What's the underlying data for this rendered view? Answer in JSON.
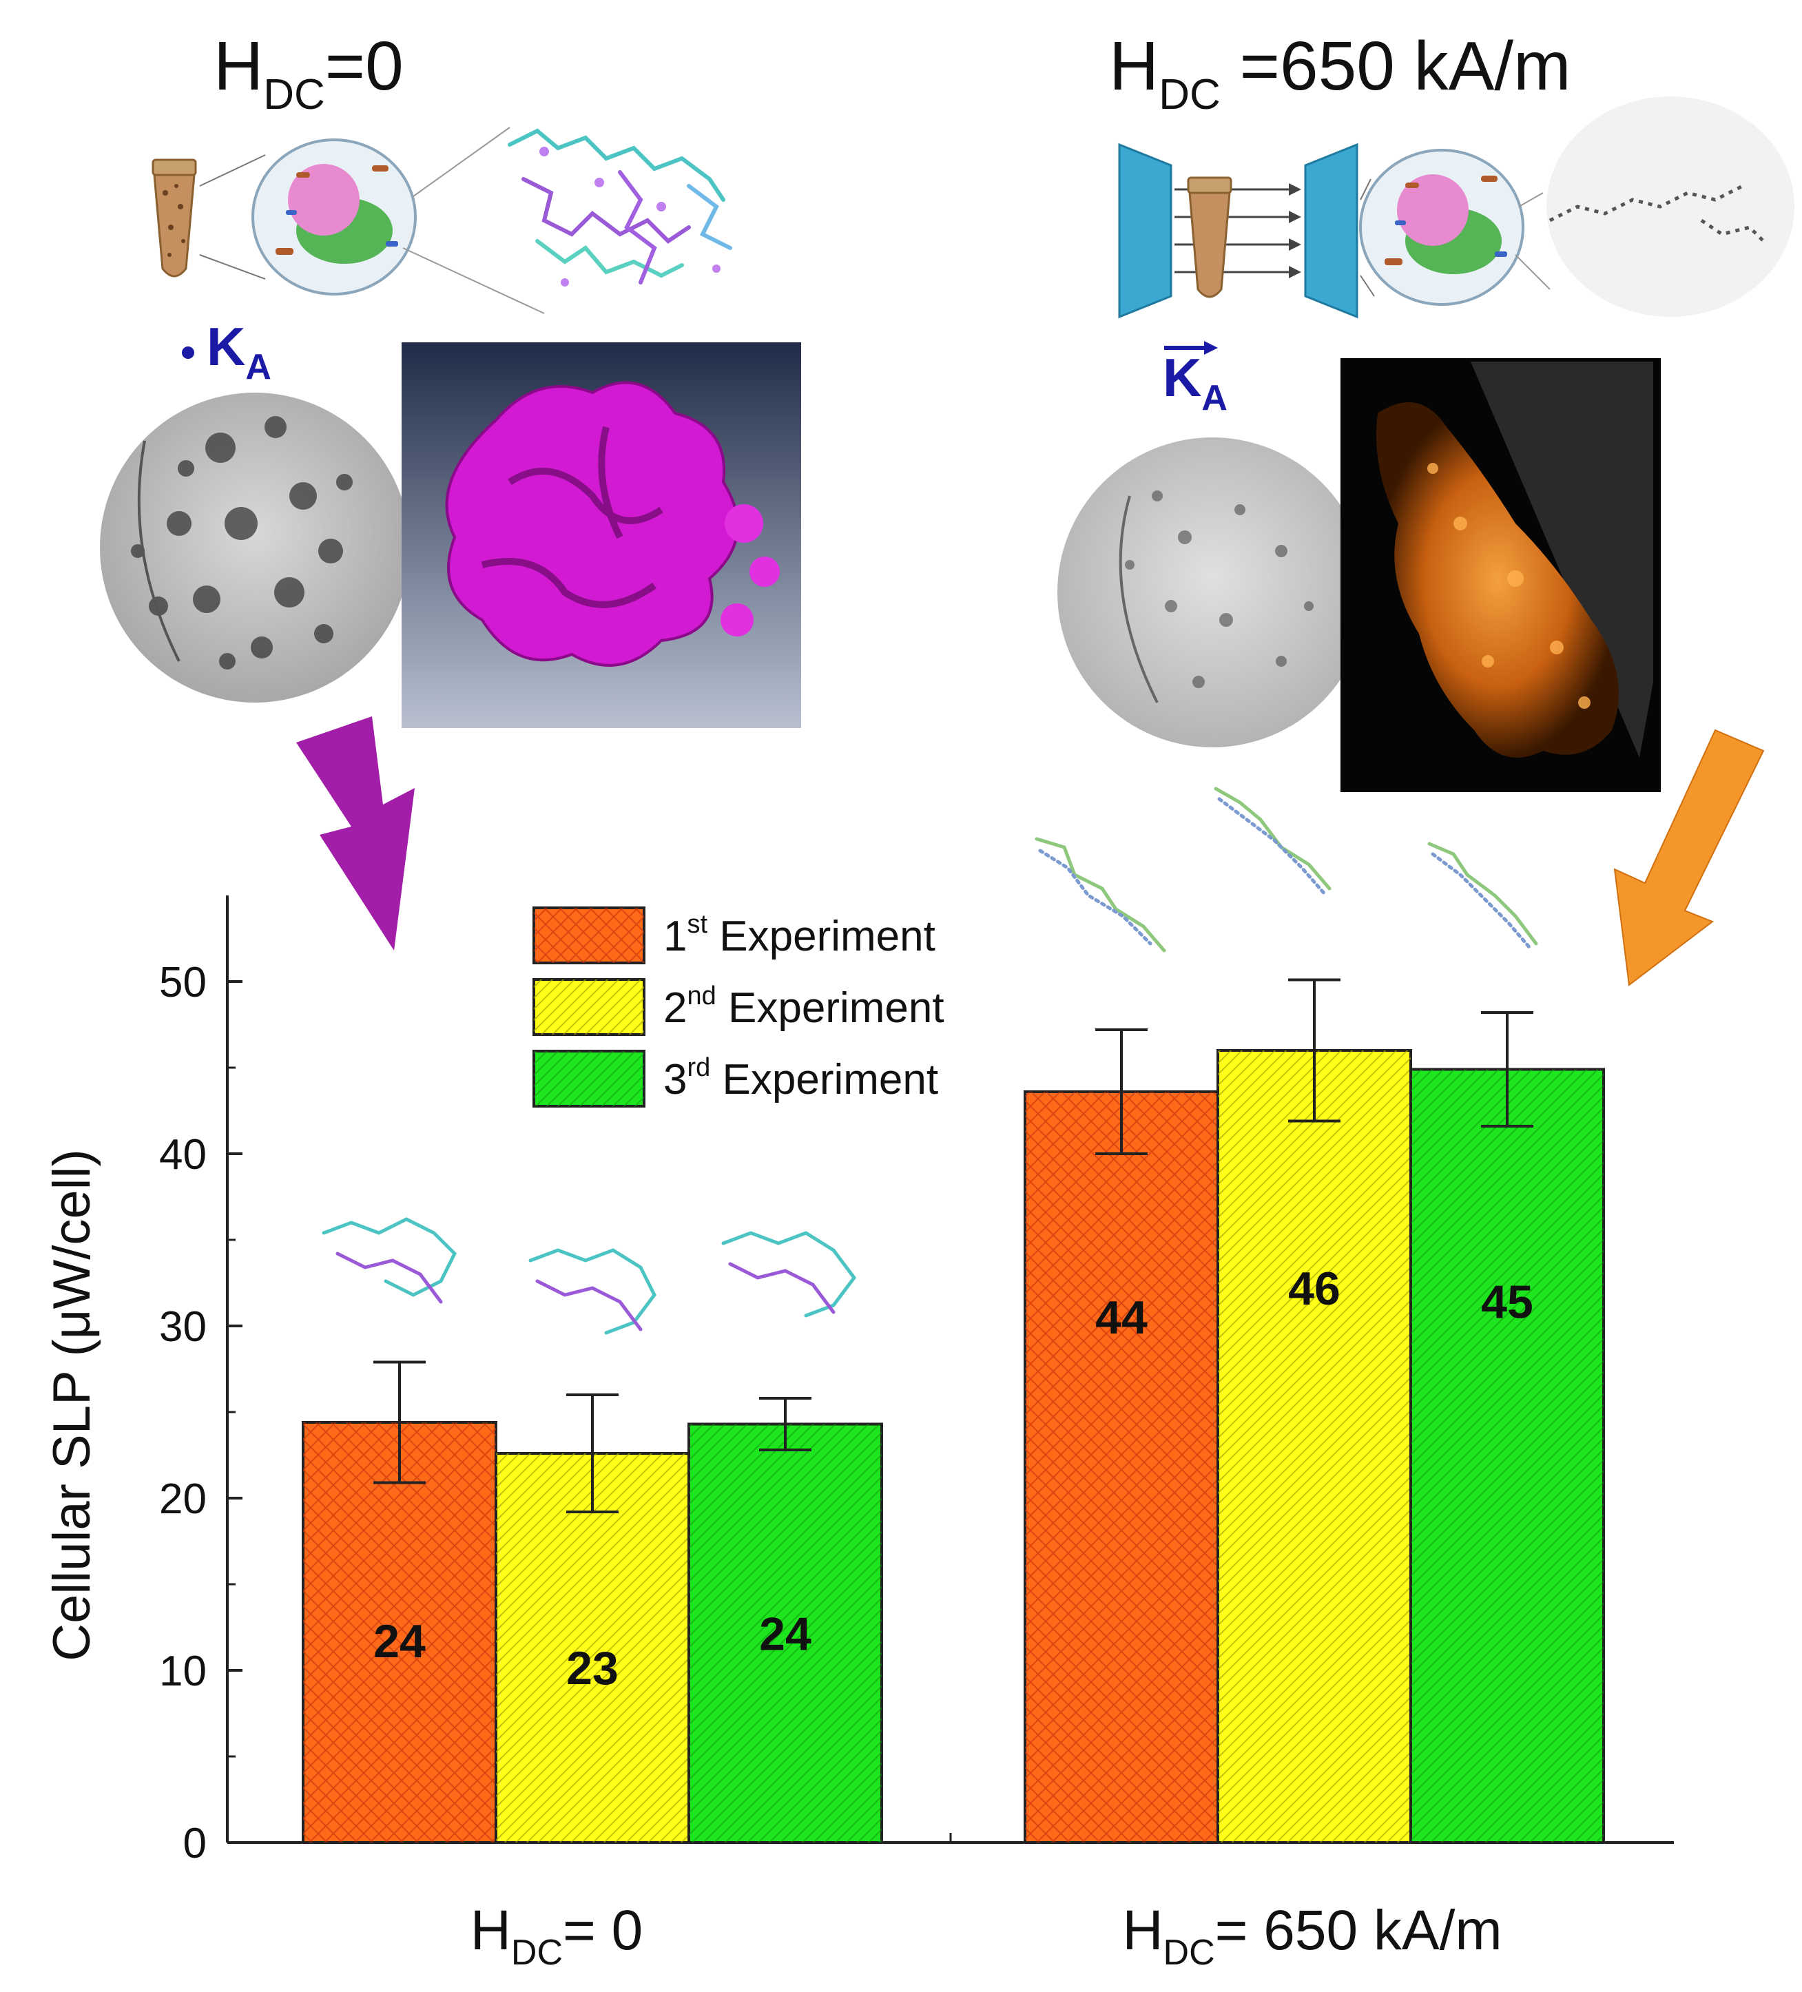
{
  "panels": {
    "left": {
      "header_main": "H",
      "header_sub": "DC",
      "header_rest": "=0",
      "ka_main": "K",
      "ka_sub": "A"
    },
    "right": {
      "header_main": "H",
      "header_sub": "DC",
      "header_rest": " =650 kA/m",
      "ka_main": "K",
      "ka_sub": "A"
    }
  },
  "colors": {
    "series": [
      "#ff6a1a",
      "#ffff1a",
      "#1ee61e"
    ],
    "left_arrow": "#a21ea8",
    "right_arrow": "#f5962a",
    "ka_text": "#1a1aa6"
  },
  "chart_data": {
    "type": "bar",
    "ylabel": "Cellular SLP (μW/cell)",
    "ylim": [
      0,
      55
    ],
    "yticks": [
      0,
      10,
      20,
      30,
      40,
      50
    ],
    "grid": false,
    "legend_position": "top-center",
    "categories": [
      {
        "main": "H",
        "sub": "DC",
        "rest": "= 0"
      },
      {
        "main": "H",
        "sub": "DC",
        "rest": "= 650 kA/m"
      }
    ],
    "series": [
      {
        "name_num": "1",
        "name_sup": "st",
        "name_rest": " Experiment",
        "values": [
          24.4,
          43.6
        ],
        "errors": [
          3.5,
          3.6
        ],
        "labels": [
          "24",
          "44"
        ]
      },
      {
        "name_num": "2",
        "name_sup": "nd",
        "name_rest": " Experiment",
        "values": [
          22.6,
          46.0
        ],
        "errors": [
          3.4,
          4.1
        ],
        "labels": [
          "23",
          "46"
        ]
      },
      {
        "name_num": "3",
        "name_sup": "rd",
        "name_rest": " Experiment",
        "values": [
          24.3,
          44.9
        ],
        "errors": [
          1.5,
          3.3
        ],
        "labels": [
          "24",
          "45"
        ]
      }
    ]
  }
}
